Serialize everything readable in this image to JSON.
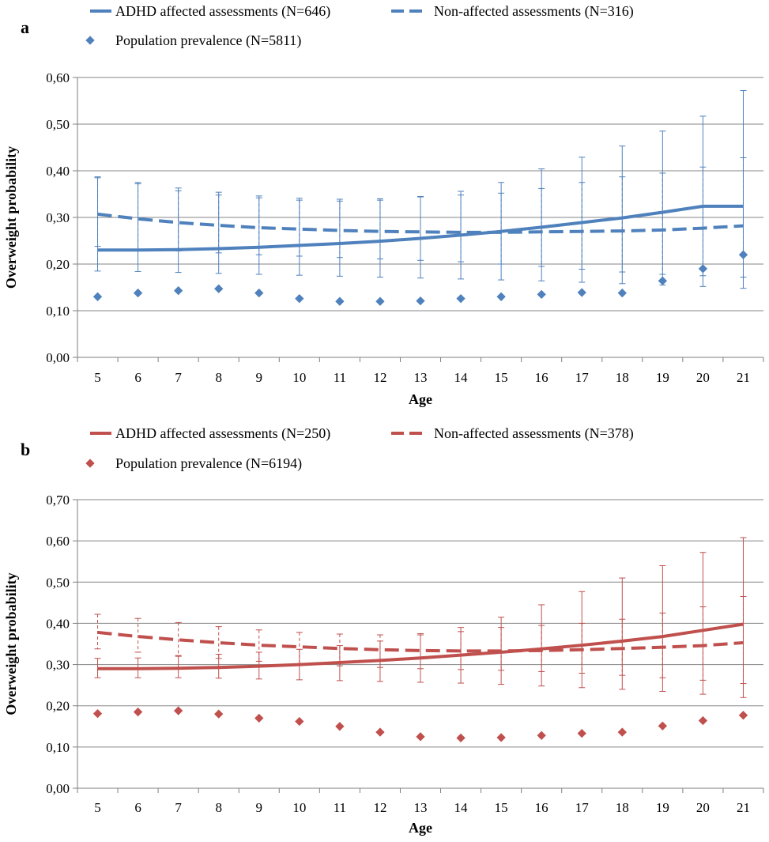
{
  "chart_data": [
    {
      "panel_label": "a",
      "type": "line",
      "xlabel": "Age",
      "ylabel": "Overweight probability",
      "x": [
        5,
        6,
        7,
        8,
        9,
        10,
        11,
        12,
        13,
        14,
        15,
        16,
        17,
        18,
        19,
        20,
        21
      ],
      "ylim": [
        0,
        0.6
      ],
      "yticks": [
        "0,00",
        "0,10",
        "0,20",
        "0,30",
        "0,40",
        "0,50",
        "0,60"
      ],
      "grid": true,
      "legend_position": "top",
      "colors": {
        "series": "#4F81BD",
        "axis": "#7f7f7f",
        "grid": "#868686"
      },
      "series": [
        {
          "name": "ADHD affected assessments (N=646)",
          "style": "solid line with error bars",
          "values": [
            0.23,
            0.23,
            0.231,
            0.233,
            0.236,
            0.24,
            0.244,
            0.249,
            0.255,
            0.262,
            0.27,
            0.279,
            0.289,
            0.299,
            0.311,
            0.324,
            0.324
          ],
          "upper": [
            0.387,
            0.375,
            0.363,
            0.354,
            0.346,
            0.341,
            0.339,
            0.34,
            0.345,
            0.356,
            0.375,
            0.404,
            0.429,
            0.453,
            0.485,
            0.517,
            0.572
          ],
          "lower": [
            0.185,
            0.184,
            0.182,
            0.18,
            0.178,
            0.176,
            0.174,
            0.172,
            0.17,
            0.168,
            0.166,
            0.164,
            0.161,
            0.158,
            0.155,
            0.152,
            0.148
          ]
        },
        {
          "name": "Non-affected assessments (N=316)",
          "style": "dashed line with error bars",
          "values": [
            0.307,
            0.297,
            0.289,
            0.283,
            0.278,
            0.275,
            0.272,
            0.27,
            0.269,
            0.268,
            0.268,
            0.269,
            0.27,
            0.271,
            0.273,
            0.277,
            0.282
          ],
          "upper": [
            0.385,
            0.372,
            0.357,
            0.348,
            0.342,
            0.337,
            0.335,
            0.337,
            0.344,
            0.348,
            0.352,
            0.362,
            0.375,
            0.387,
            0.395,
            0.408,
            0.428
          ],
          "lower": [
            0.238,
            0.232,
            0.228,
            0.224,
            0.22,
            0.217,
            0.214,
            0.211,
            0.208,
            0.205,
            0.2,
            0.195,
            0.189,
            0.183,
            0.178,
            0.175,
            0.172
          ]
        },
        {
          "name": "Population prevalence (N=5811)",
          "style": "diamond markers",
          "values": [
            0.13,
            0.138,
            0.143,
            0.147,
            0.138,
            0.126,
            0.12,
            0.12,
            0.121,
            0.126,
            0.13,
            0.135,
            0.139,
            0.138,
            0.164,
            0.19,
            0.22
          ]
        }
      ]
    },
    {
      "panel_label": "b",
      "type": "line",
      "xlabel": "Age",
      "ylabel": "Overweight probability",
      "x": [
        5,
        6,
        7,
        8,
        9,
        10,
        11,
        12,
        13,
        14,
        15,
        16,
        17,
        18,
        19,
        20,
        21
      ],
      "ylim": [
        0,
        0.7
      ],
      "yticks": [
        "0,00",
        "0,10",
        "0,20",
        "0,30",
        "0,40",
        "0,50",
        "0,60",
        "0,70"
      ],
      "grid": true,
      "legend_position": "top",
      "colors": {
        "series": "#C0504D",
        "axis": "#7f7f7f",
        "grid": "#868686"
      },
      "series": [
        {
          "name": "ADHD affected assessments (N=250)",
          "style": "solid line with error bars",
          "values": [
            0.29,
            0.29,
            0.291,
            0.293,
            0.296,
            0.3,
            0.305,
            0.31,
            0.316,
            0.323,
            0.33,
            0.338,
            0.347,
            0.357,
            0.368,
            0.383,
            0.398
          ],
          "upper": [
            0.315,
            0.316,
            0.32,
            0.325,
            0.33,
            0.337,
            0.346,
            0.357,
            0.372,
            0.39,
            0.415,
            0.445,
            0.477,
            0.51,
            0.54,
            0.572,
            0.608
          ],
          "lower": [
            0.268,
            0.268,
            0.268,
            0.267,
            0.265,
            0.263,
            0.261,
            0.259,
            0.257,
            0.255,
            0.252,
            0.248,
            0.244,
            0.24,
            0.235,
            0.228,
            0.22
          ]
        },
        {
          "name": "Non-affected assessments (N=378)",
          "style": "dashed line with error bars",
          "values": [
            0.378,
            0.368,
            0.36,
            0.353,
            0.347,
            0.343,
            0.339,
            0.336,
            0.334,
            0.333,
            0.333,
            0.334,
            0.336,
            0.339,
            0.342,
            0.346,
            0.353
          ],
          "upper": [
            0.422,
            0.412,
            0.402,
            0.392,
            0.384,
            0.378,
            0.374,
            0.372,
            0.375,
            0.38,
            0.39,
            0.395,
            0.4,
            0.41,
            0.425,
            0.44,
            0.465
          ],
          "lower": [
            0.338,
            0.33,
            0.322,
            0.315,
            0.308,
            0.302,
            0.297,
            0.293,
            0.29,
            0.288,
            0.286,
            0.283,
            0.279,
            0.274,
            0.268,
            0.262,
            0.254
          ]
        },
        {
          "name": "Population prevalence (N=6194)",
          "style": "diamond markers",
          "values": [
            0.181,
            0.185,
            0.188,
            0.18,
            0.17,
            0.162,
            0.15,
            0.136,
            0.125,
            0.122,
            0.123,
            0.128,
            0.133,
            0.136,
            0.151,
            0.164,
            0.177
          ]
        }
      ]
    }
  ]
}
